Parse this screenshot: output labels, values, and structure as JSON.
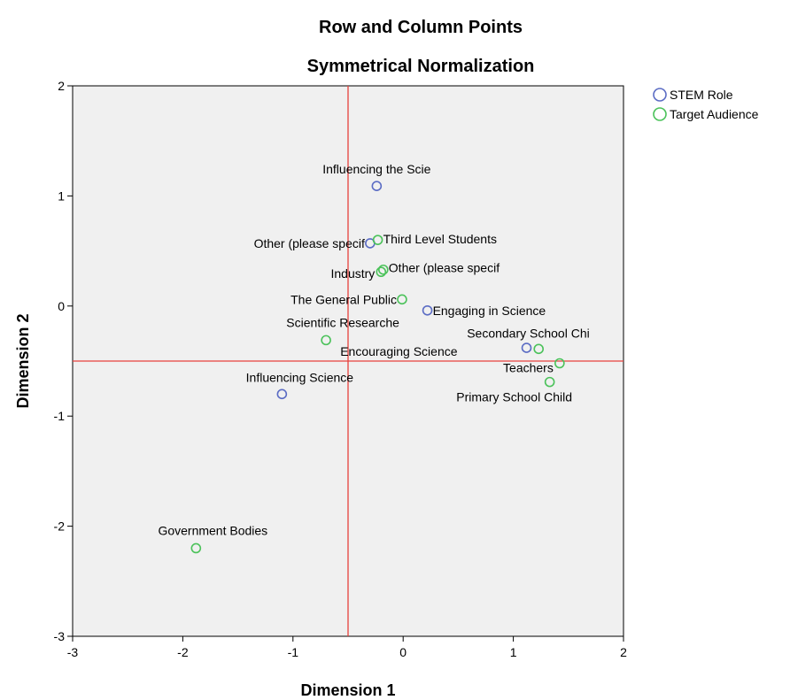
{
  "chart_data": {
    "type": "scatter",
    "title": "Row and Column Points",
    "subtitle": "Symmetrical Normalization",
    "xlabel": "Dimension 1",
    "ylabel": "Dimension 2",
    "xlim": [
      -3,
      2
    ],
    "ylim": [
      -3,
      2
    ],
    "xticks": [
      "-3",
      "-2",
      "-1",
      "0",
      "1",
      "2"
    ],
    "yticks": [
      "-3",
      "-2",
      "-1",
      "0",
      "1",
      "2"
    ],
    "reference_lines": {
      "x": -0.5,
      "y": -0.5
    },
    "legend_position": "top-right, outside plot",
    "grid": false,
    "background_color": "#f0f0f0",
    "reference_line_color": "#e8413c",
    "series": [
      {
        "name": "STEM Role",
        "color": "#5b6cc4",
        "points": [
          {
            "label": "Influencing the Scie",
            "x": -0.24,
            "y": 1.09
          },
          {
            "label": "Other (please specif",
            "x": -0.3,
            "y": 0.57
          },
          {
            "label": "Engaging in Science",
            "x": 0.22,
            "y": -0.04
          },
          {
            "label": "Encouraging Science",
            "x": 1.12,
            "y": -0.38
          },
          {
            "label": "Influencing Science",
            "x": -1.1,
            "y": -0.8
          }
        ]
      },
      {
        "name": "Target Audience",
        "color": "#4bc25a",
        "points": [
          {
            "label": "Third Level Students",
            "x": -0.23,
            "y": 0.6
          },
          {
            "label": "Industry",
            "x": -0.2,
            "y": 0.31
          },
          {
            "label": "Other (please specif",
            "x": -0.18,
            "y": 0.33
          },
          {
            "label": "The General Public",
            "x": -0.01,
            "y": 0.06
          },
          {
            "label": "Scientific Researche",
            "x": -0.7,
            "y": -0.31
          },
          {
            "label": "Secondary School Chi",
            "x": 1.23,
            "y": -0.39
          },
          {
            "label": "Teachers",
            "x": 1.42,
            "y": -0.52
          },
          {
            "label": "Primary School Child",
            "x": 1.33,
            "y": -0.69
          },
          {
            "label": "Government Bodies",
            "x": -1.88,
            "y": -2.2
          }
        ]
      }
    ]
  }
}
